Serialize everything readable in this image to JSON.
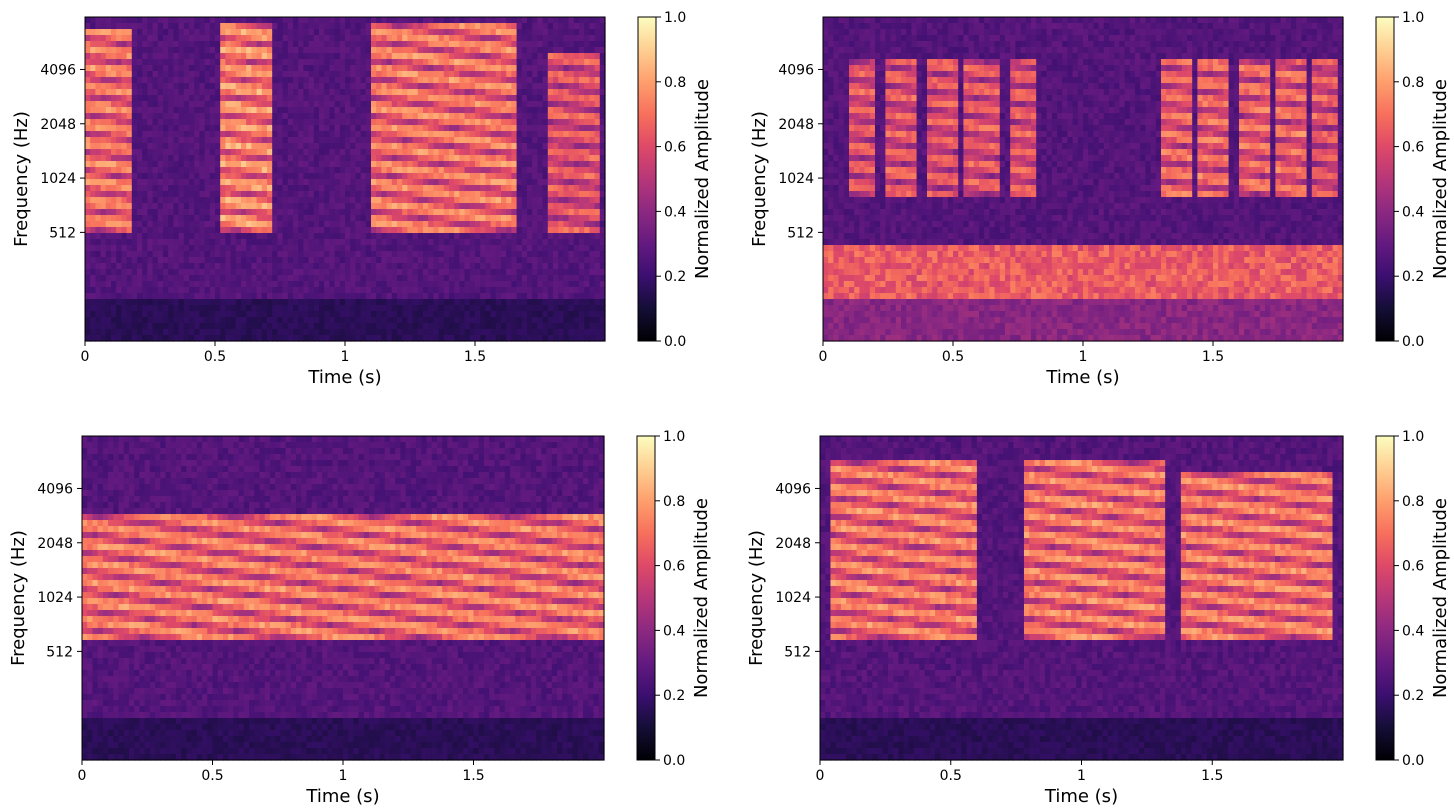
{
  "chart_data": [
    {
      "type": "heatmap",
      "xlabel": "Time (s)",
      "ylabel": "Frequency (Hz)",
      "xlim": [
        0,
        2.0
      ],
      "xticks": [
        {
          "value": 0,
          "label": "0"
        },
        {
          "value": 0.5,
          "label": "0.5"
        },
        {
          "value": 1,
          "label": "1"
        },
        {
          "value": 1.5,
          "label": "1.5"
        }
      ],
      "yscale": "log2",
      "ylim": [
        128,
        8000
      ],
      "yticks": [
        {
          "value": 512,
          "label": "512"
        },
        {
          "value": 1024,
          "label": "1024"
        },
        {
          "value": 2048,
          "label": "2048"
        },
        {
          "value": 4096,
          "label": "4096"
        }
      ],
      "colormap": "magma",
      "colorbar": {
        "label": "Normalized Amplitude",
        "range": [
          0,
          1
        ],
        "ticks": [
          "0.0",
          "0.2",
          "0.4",
          "0.6",
          "0.8",
          "1.0"
        ]
      },
      "pattern": "bursts",
      "events": [
        {
          "start": 0.0,
          "end": 0.18,
          "fmin": 500,
          "fmax": 7000,
          "level": 0.85
        },
        {
          "start": 0.52,
          "end": 0.72,
          "fmin": 500,
          "fmax": 7500,
          "level": 0.9
        },
        {
          "start": 1.1,
          "end": 1.65,
          "fmin": 500,
          "fmax": 7500,
          "level": 0.85
        },
        {
          "start": 1.78,
          "end": 1.98,
          "fmin": 500,
          "fmax": 5000,
          "level": 0.75
        }
      ]
    },
    {
      "type": "heatmap",
      "xlabel": "Time (s)",
      "ylabel": "Frequency (Hz)",
      "xlim": [
        0,
        2.0
      ],
      "xticks": [
        {
          "value": 0,
          "label": "0"
        },
        {
          "value": 0.5,
          "label": "0.5"
        },
        {
          "value": 1,
          "label": "1"
        },
        {
          "value": 1.5,
          "label": "1.5"
        }
      ],
      "yscale": "log2",
      "ylim": [
        128,
        8000
      ],
      "yticks": [
        {
          "value": 512,
          "label": "512"
        },
        {
          "value": 1024,
          "label": "1024"
        },
        {
          "value": 2048,
          "label": "2048"
        },
        {
          "value": 4096,
          "label": "4096"
        }
      ],
      "colormap": "magma",
      "colorbar": {
        "label": "Normalized Amplitude",
        "range": [
          0,
          1
        ],
        "ticks": [
          "0.0",
          "0.2",
          "0.4",
          "0.6",
          "0.8",
          "1.0"
        ]
      },
      "pattern": "pulses",
      "low_band_energy": 0.7,
      "events": [
        {
          "start": 0.1,
          "end": 0.2,
          "fmin": 800,
          "fmax": 4800,
          "level": 0.75
        },
        {
          "start": 0.25,
          "end": 0.36,
          "fmin": 800,
          "fmax": 4800,
          "level": 0.75
        },
        {
          "start": 0.4,
          "end": 0.52,
          "fmin": 800,
          "fmax": 4800,
          "level": 0.75
        },
        {
          "start": 0.55,
          "end": 0.67,
          "fmin": 800,
          "fmax": 4800,
          "level": 0.75
        },
        {
          "start": 0.72,
          "end": 0.82,
          "fmin": 800,
          "fmax": 4800,
          "level": 0.75
        },
        {
          "start": 1.3,
          "end": 1.42,
          "fmin": 800,
          "fmax": 4800,
          "level": 0.8
        },
        {
          "start": 1.45,
          "end": 1.56,
          "fmin": 800,
          "fmax": 4800,
          "level": 0.8
        },
        {
          "start": 1.6,
          "end": 1.72,
          "fmin": 800,
          "fmax": 4800,
          "level": 0.8
        },
        {
          "start": 1.75,
          "end": 1.85,
          "fmin": 800,
          "fmax": 4800,
          "level": 0.8
        },
        {
          "start": 1.88,
          "end": 1.98,
          "fmin": 800,
          "fmax": 4800,
          "level": 0.75
        }
      ]
    },
    {
      "type": "heatmap",
      "xlabel": "Time (s)",
      "ylabel": "Frequency (Hz)",
      "xlim": [
        0,
        2.0
      ],
      "xticks": [
        {
          "value": 0,
          "label": "0"
        },
        {
          "value": 0.5,
          "label": "0.5"
        },
        {
          "value": 1,
          "label": "1"
        },
        {
          "value": 1.5,
          "label": "1.5"
        }
      ],
      "yscale": "log2",
      "ylim": [
        128,
        8000
      ],
      "yticks": [
        {
          "value": 512,
          "label": "512"
        },
        {
          "value": 1024,
          "label": "1024"
        },
        {
          "value": 2048,
          "label": "2048"
        },
        {
          "value": 4096,
          "label": "4096"
        }
      ],
      "colormap": "magma",
      "colorbar": {
        "label": "Normalized Amplitude",
        "range": [
          0,
          1
        ],
        "ticks": [
          "0.0",
          "0.2",
          "0.4",
          "0.6",
          "0.8",
          "1.0"
        ]
      },
      "pattern": "continuous",
      "events": [
        {
          "start": 0.0,
          "end": 2.0,
          "fmin": 600,
          "fmax": 3000,
          "level": 0.85
        }
      ]
    },
    {
      "type": "heatmap",
      "xlabel": "Time (s)",
      "ylabel": "Frequency (Hz)",
      "xlim": [
        0,
        2.0
      ],
      "xticks": [
        {
          "value": 0,
          "label": "0"
        },
        {
          "value": 0.5,
          "label": "0.5"
        },
        {
          "value": 1,
          "label": "1"
        },
        {
          "value": 1.5,
          "label": "1.5"
        }
      ],
      "yscale": "log2",
      "ylim": [
        128,
        8000
      ],
      "yticks": [
        {
          "value": 512,
          "label": "512"
        },
        {
          "value": 1024,
          "label": "1024"
        },
        {
          "value": 2048,
          "label": "2048"
        },
        {
          "value": 4096,
          "label": "4096"
        }
      ],
      "colormap": "magma",
      "colorbar": {
        "label": "Normalized Amplitude",
        "range": [
          0,
          1
        ],
        "ticks": [
          "0.0",
          "0.2",
          "0.4",
          "0.6",
          "0.8",
          "1.0"
        ]
      },
      "pattern": "blocks",
      "events": [
        {
          "start": 0.05,
          "end": 0.6,
          "fmin": 600,
          "fmax": 6000,
          "level": 0.85
        },
        {
          "start": 0.78,
          "end": 1.32,
          "fmin": 600,
          "fmax": 6000,
          "level": 0.85
        },
        {
          "start": 1.38,
          "end": 1.95,
          "fmin": 600,
          "fmax": 5000,
          "level": 0.85
        }
      ]
    }
  ]
}
